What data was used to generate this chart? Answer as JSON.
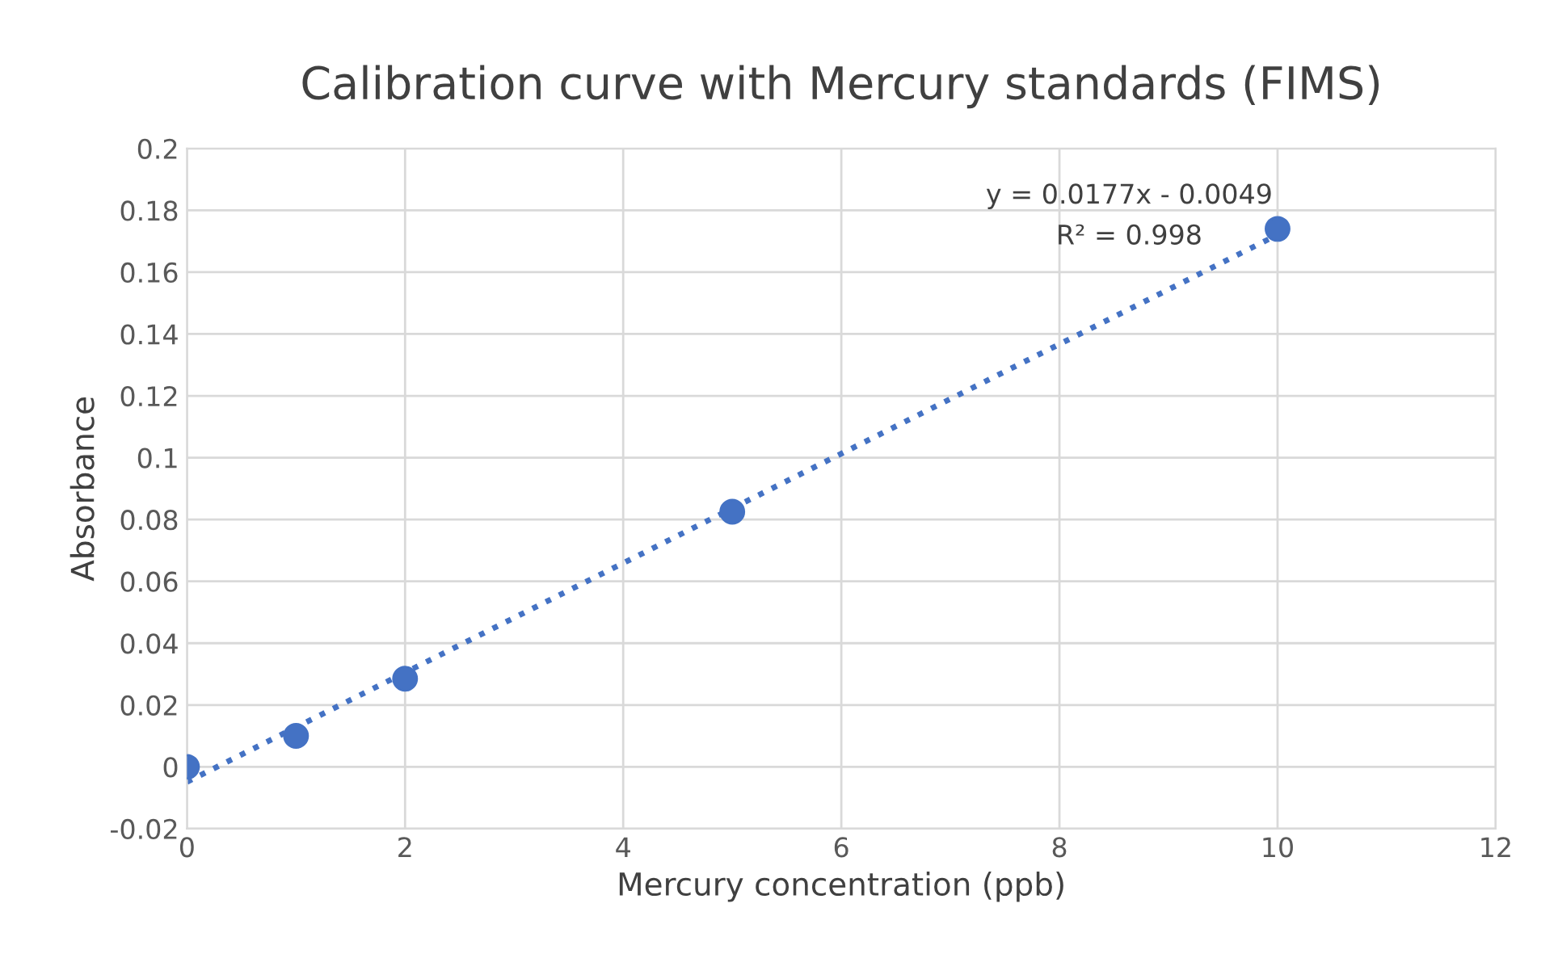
{
  "chart_data": {
    "type": "scatter",
    "title": "Calibration curve with Mercury standards (FIMS)",
    "xlabel": "Mercury concentration (ppb)",
    "ylabel": "Absorbance",
    "series": [
      {
        "color": "#4472c4",
        "x": [
          0,
          1,
          2,
          5,
          10
        ],
        "values": [
          0,
          0.01,
          0.0285,
          0.0825,
          0.174
        ],
        "marker": "circle"
      },
      {
        "type": "line",
        "color": "#4472c4",
        "x": [
          0,
          10
        ],
        "values": [
          -0.0049,
          0.1721
        ],
        "marker": "none",
        "line_style": "dotted"
      }
    ],
    "annotations": [
      "y = 0.0177x - 0.0049",
      "R² = 0.998"
    ],
    "xlim": [
      0,
      12
    ],
    "xticks": [
      0,
      2,
      4,
      6,
      8,
      10,
      12
    ],
    "ylim": [
      -0.02,
      0.2
    ],
    "yticks": [
      -0.02,
      0,
      0.02,
      0.04,
      0.06,
      0.08,
      0.1,
      0.12,
      0.14,
      0.16,
      0.18,
      0.2
    ],
    "grid": true,
    "legend": false
  }
}
